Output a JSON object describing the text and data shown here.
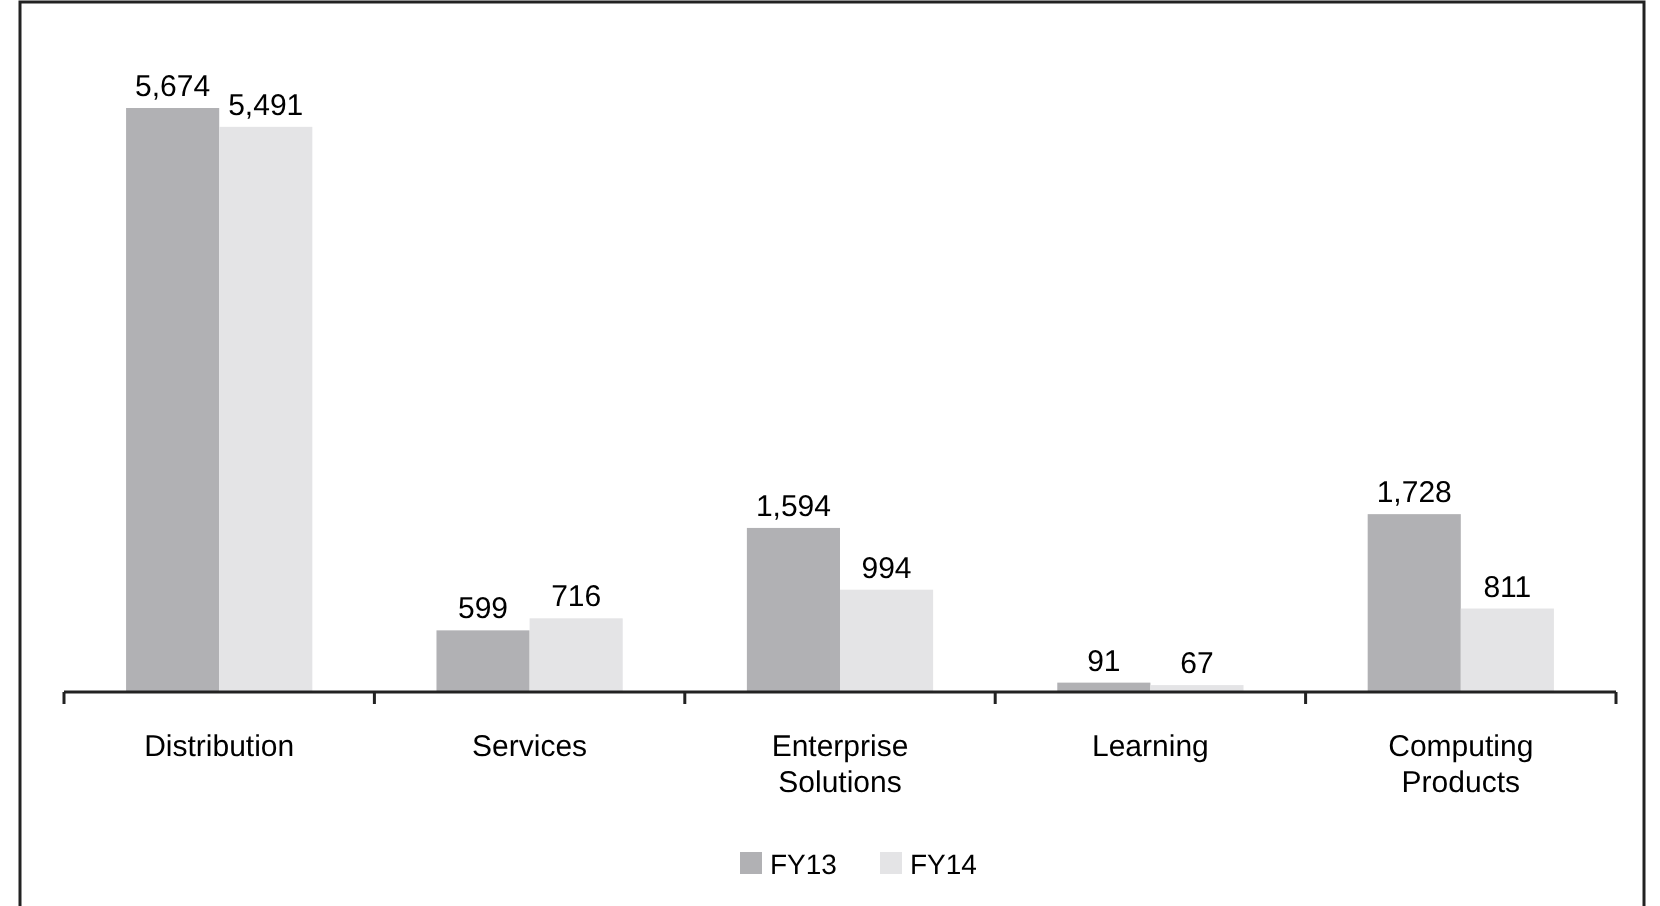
{
  "chart_data": {
    "type": "bar",
    "categories": [
      "Distribution",
      "Services",
      "Enterprise Solutions",
      "Learning",
      "Computing Products"
    ],
    "series": [
      {
        "name": "FY13",
        "color": "#b1b1b4",
        "values": [
          5674,
          599,
          1594,
          91,
          1728
        ],
        "value_labels": [
          "5,674",
          "599",
          "1,594",
          "91",
          "1,728"
        ]
      },
      {
        "name": "FY14",
        "color": "#e4e4e6",
        "values": [
          5491,
          716,
          994,
          67,
          811
        ],
        "value_labels": [
          "5,491",
          "716",
          "994",
          "67",
          "811"
        ]
      }
    ],
    "legend": "bottom"
  }
}
